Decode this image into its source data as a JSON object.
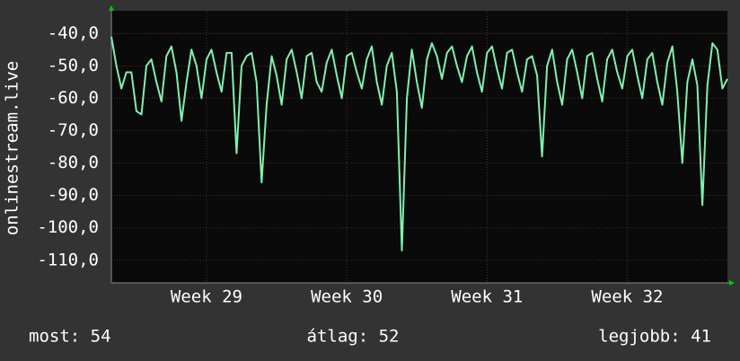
{
  "chart_data": {
    "type": "line",
    "y_label": "onlinestream.live",
    "values": [
      -41,
      -50,
      -57,
      -52,
      -52,
      -64,
      -65,
      -50,
      -48,
      -55,
      -61,
      -47,
      -44,
      -52,
      -67,
      -55,
      -45,
      -50,
      -60,
      -48,
      -45,
      -52,
      -58,
      -46,
      -46,
      -77,
      -50,
      -47,
      -46,
      -55,
      -86,
      -62,
      -47,
      -53,
      -62,
      -48,
      -45,
      -52,
      -60,
      -47,
      -46,
      -55,
      -58,
      -49,
      -45,
      -53,
      -60,
      -47,
      -46,
      -52,
      -57,
      -48,
      -44,
      -55,
      -62,
      -50,
      -46,
      -58,
      -107,
      -60,
      -45,
      -55,
      -63,
      -48,
      -43,
      -47,
      -54,
      -46,
      -44,
      -50,
      -55,
      -47,
      -44,
      -52,
      -58,
      -46,
      -44,
      -51,
      -57,
      -46,
      -45,
      -52,
      -58,
      -48,
      -47,
      -53,
      -78,
      -50,
      -45,
      -55,
      -62,
      -48,
      -45,
      -52,
      -60,
      -47,
      -46,
      -54,
      -61,
      -48,
      -45,
      -52,
      -57,
      -47,
      -45,
      -53,
      -60,
      -48,
      -46,
      -55,
      -62,
      -49,
      -44,
      -58,
      -80,
      -55,
      -48,
      -56,
      -93,
      -56,
      -43,
      -45,
      -57,
      -54
    ],
    "color": "#80f0b0",
    "xlim": [
      0,
      123
    ],
    "xticks": [
      {
        "value": 19,
        "label": "Week 29"
      },
      {
        "value": 47,
        "label": "Week 30"
      },
      {
        "value": 75,
        "label": "Week 31"
      },
      {
        "value": 103,
        "label": "Week 32"
      }
    ],
    "ylim": [
      -117,
      -33
    ],
    "yticks": [
      {
        "value": -40,
        "label": "-40,0"
      },
      {
        "value": -50,
        "label": "-50,0"
      },
      {
        "value": -60,
        "label": "-60,0"
      },
      {
        "value": -70,
        "label": "-70,0"
      },
      {
        "value": -80,
        "label": "-80,0"
      },
      {
        "value": -90,
        "label": "-90,0"
      },
      {
        "value": -100,
        "label": "-100,0"
      },
      {
        "value": -110,
        "label": "-110,0"
      }
    ],
    "grid": true,
    "stats": [
      "most: 54",
      "átlag: 52",
      "legjobb: 41"
    ]
  }
}
